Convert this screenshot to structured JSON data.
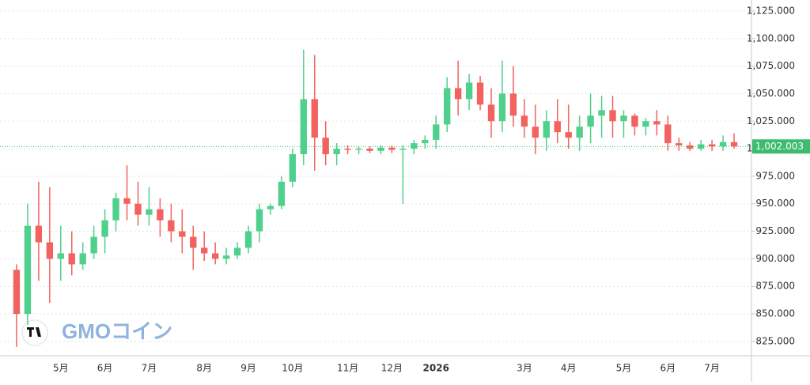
{
  "chart_data": {
    "type": "candlestick",
    "categories": [
      null,
      null,
      null,
      null,
      "5月",
      null,
      null,
      null,
      "6月",
      null,
      null,
      null,
      "7月",
      null,
      null,
      null,
      null,
      "8月",
      null,
      null,
      null,
      "9月",
      null,
      null,
      null,
      "10月",
      null,
      null,
      null,
      null,
      "11月",
      null,
      null,
      null,
      "12月",
      null,
      null,
      null,
      "2026",
      null,
      null,
      null,
      null,
      null,
      null,
      null,
      "3月",
      null,
      null,
      null,
      "4月",
      null,
      null,
      null,
      null,
      "5月",
      null,
      null,
      null,
      "6月",
      null,
      null,
      null,
      "7月",
      null,
      null
    ],
    "series": [
      {
        "up_color": "#4fd08c",
        "down_color": "#f2625f",
        "open": [
          890,
          850,
          930,
          915,
          900,
          905,
          895,
          905,
          920,
          935,
          955,
          950,
          940,
          945,
          935,
          925,
          920,
          910,
          905,
          900,
          903,
          910,
          925,
          945,
          948,
          970,
          995,
          1045,
          1010,
          995,
          1000,
          999,
          1000,
          998,
          1001,
          999,
          1000,
          1005,
          1008,
          1022,
          1055,
          1045,
          1060,
          1040,
          1025,
          1050,
          1030,
          1020,
          1010,
          1025,
          1015,
          1010,
          1020,
          1030,
          1035,
          1025,
          1030,
          1020,
          1025,
          1022,
          1005,
          1003,
          1000,
          1004,
          1002,
          1006
        ],
        "high": [
          895,
          950,
          970,
          965,
          930,
          925,
          915,
          930,
          945,
          960,
          985,
          970,
          965,
          955,
          950,
          945,
          930,
          925,
          915,
          910,
          915,
          930,
          950,
          950,
          975,
          1000,
          1090,
          1085,
          1025,
          1005,
          1003,
          1002,
          1002,
          1003,
          1003,
          1003,
          1008,
          1012,
          1030,
          1065,
          1080,
          1068,
          1066,
          1055,
          1080,
          1075,
          1045,
          1040,
          1035,
          1045,
          1040,
          1030,
          1050,
          1048,
          1048,
          1035,
          1032,
          1028,
          1035,
          1030,
          1010,
          1006,
          1008,
          1008,
          1012,
          1014
        ],
        "low": [
          820,
          840,
          880,
          860,
          880,
          885,
          890,
          900,
          905,
          925,
          935,
          930,
          930,
          920,
          915,
          905,
          890,
          898,
          895,
          895,
          900,
          905,
          915,
          940,
          945,
          965,
          985,
          980,
          985,
          985,
          995,
          995,
          996,
          995,
          996,
          950,
          995,
          1000,
          1000,
          1015,
          1030,
          1035,
          1035,
          1010,
          1015,
          1020,
          1010,
          995,
          998,
          1005,
          1000,
          998,
          1005,
          1010,
          1010,
          1010,
          1012,
          1012,
          1012,
          998,
          998,
          998,
          998,
          998,
          998,
          1000
        ],
        "close": [
          850,
          930,
          915,
          900,
          905,
          895,
          905,
          920,
          935,
          955,
          950,
          940,
          945,
          935,
          925,
          920,
          910,
          905,
          900,
          903,
          910,
          925,
          945,
          948,
          970,
          995,
          1045,
          1010,
          995,
          1000,
          999,
          1000,
          998,
          1001,
          999,
          1000,
          1005,
          1008,
          1022,
          1055,
          1045,
          1060,
          1040,
          1025,
          1050,
          1030,
          1020,
          1010,
          1025,
          1015,
          1010,
          1020,
          1030,
          1035,
          1025,
          1030,
          1020,
          1025,
          1022,
          1005,
          1003,
          1000,
          1004,
          1002,
          1006,
          1002
        ]
      }
    ],
    "ylim": [
      812,
      1135
    ],
    "yticks": [
      {
        "value": 825,
        "label": "825.000"
      },
      {
        "value": 850,
        "label": "850.000"
      },
      {
        "value": 875,
        "label": "875.000"
      },
      {
        "value": 900,
        "label": "900.000"
      },
      {
        "value": 925,
        "label": "925.000"
      },
      {
        "value": 950,
        "label": "950.000"
      },
      {
        "value": 975,
        "label": "975.000"
      },
      {
        "value": 1000,
        "label": "1,000.000"
      },
      {
        "value": 1025,
        "label": "1,025.000"
      },
      {
        "value": 1050,
        "label": "1,050.000"
      },
      {
        "value": 1075,
        "label": "1,075.000"
      },
      {
        "value": 1100,
        "label": "1,100.000"
      },
      {
        "value": 1125,
        "label": "1,125.000"
      }
    ],
    "last_price": {
      "value": 1002.003,
      "label": "1,002.003",
      "color": "#3dbb6e"
    },
    "watermark": "GMOコイン",
    "grid": true
  }
}
